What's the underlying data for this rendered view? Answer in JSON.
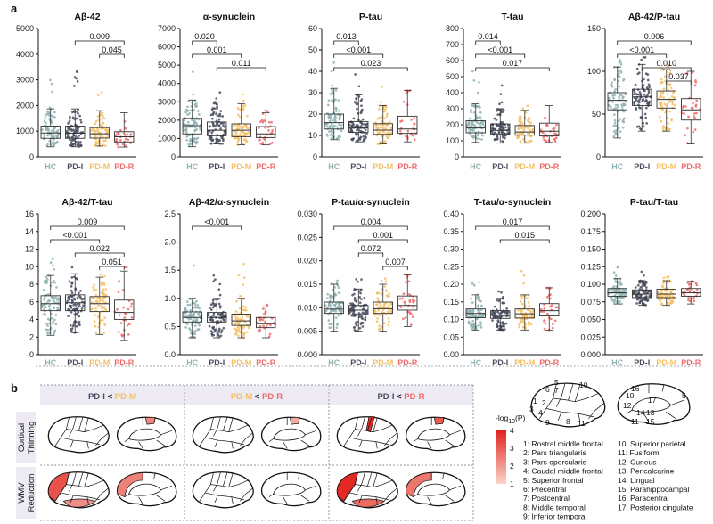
{
  "panel_labels": {
    "a": "a",
    "b": "b"
  },
  "colors": {
    "HC": "#8fb3b3",
    "PD-I": "#4a4e60",
    "PD-M": "#f5c064",
    "PD-R": "#ee6b6b"
  },
  "chart_data": [
    {
      "type": "box",
      "title": "Aβ-42",
      "categories": [
        "HC",
        "PD-I",
        "PD-M",
        "PD-R"
      ],
      "ylim": [
        0,
        5000
      ],
      "yticks": [
        0,
        1000,
        2000,
        3000,
        4000,
        5000
      ],
      "boxes": [
        [
          390,
          720,
          930,
          1200,
          1870
        ],
        [
          390,
          720,
          920,
          1200,
          1870
        ],
        [
          420,
          730,
          900,
          1140,
          1800
        ],
        [
          380,
          580,
          780,
          980,
          1720
        ]
      ],
      "outlier_max": [
        3300,
        3700,
        2600,
        1700
      ],
      "comparisons": [
        {
          "g1": "PD-I",
          "g2": "PD-R",
          "p": "0.009"
        },
        {
          "g1": "PD-M",
          "g2": "PD-R",
          "p": "0.045"
        }
      ]
    },
    {
      "type": "box",
      "title": "α-synuclein",
      "categories": [
        "HC",
        "PD-I",
        "PD-M",
        "PD-R"
      ],
      "ylim": [
        0,
        7000
      ],
      "yticks": [
        0,
        1000,
        2000,
        3000,
        4000,
        5000,
        6000,
        7000
      ],
      "boxes": [
        [
          550,
          1250,
          1700,
          2100,
          3100
        ],
        [
          700,
          1150,
          1450,
          1900,
          3000
        ],
        [
          650,
          1100,
          1450,
          1800,
          2900
        ],
        [
          650,
          1050,
          1250,
          1650,
          2400
        ]
      ],
      "outlier_max": [
        4700,
        3700,
        3800,
        2600
      ],
      "comparisons": [
        {
          "g1": "HC",
          "g2": "PD-I",
          "p": "0.020"
        },
        {
          "g1": "HC",
          "g2": "PD-M",
          "p": "0.001"
        },
        {
          "g1": "PD-I",
          "g2": "PD-R",
          "p": "0.011"
        }
      ]
    },
    {
      "type": "box",
      "title": "P-tau",
      "categories": [
        "HC",
        "PD-I",
        "PD-M",
        "PD-R"
      ],
      "ylim": [
        0,
        60
      ],
      "yticks": [
        0,
        10,
        20,
        30,
        40,
        50,
        60
      ],
      "boxes": [
        [
          8,
          13,
          16,
          20,
          32
        ],
        [
          7,
          11.5,
          13.5,
          16.5,
          29
        ],
        [
          6,
          10.5,
          12.5,
          15.5,
          24
        ],
        [
          7,
          11,
          13,
          19,
          31
        ]
      ],
      "outlier_max": [
        45,
        47,
        39,
        31
      ],
      "comparisons": [
        {
          "g1": "HC",
          "g2": "PD-I",
          "p": "0.013"
        },
        {
          "g1": "HC",
          "g2": "PD-M",
          "p": "<0.001"
        },
        {
          "g1": "HC",
          "g2": "PD-R",
          "p": "0.023"
        }
      ]
    },
    {
      "type": "box",
      "title": "T-tau",
      "categories": [
        "HC",
        "PD-I",
        "PD-M",
        "PD-R"
      ],
      "ylim": [
        0,
        800
      ],
      "yticks": [
        0,
        100,
        200,
        300,
        400,
        500,
        600,
        700,
        800
      ],
      "boxes": [
        [
          90,
          150,
          180,
          225,
          330
        ],
        [
          85,
          140,
          165,
          205,
          300
        ],
        [
          85,
          135,
          155,
          195,
          290
        ],
        [
          90,
          130,
          160,
          210,
          320
        ]
      ],
      "outlier_max": [
        600,
        470,
        350,
        320
      ],
      "comparisons": [
        {
          "g1": "HC",
          "g2": "PD-I",
          "p": "0.014"
        },
        {
          "g1": "HC",
          "g2": "PD-M",
          "p": "<0.001"
        },
        {
          "g1": "HC",
          "g2": "PD-R",
          "p": "0.017"
        }
      ]
    },
    {
      "type": "box",
      "title": "Aβ-42/P-tau",
      "categories": [
        "HC",
        "PD-I",
        "PD-M",
        "PD-R"
      ],
      "ylim": [
        0,
        150
      ],
      "yticks": [
        0,
        50,
        100,
        150
      ],
      "boxes": [
        [
          22,
          55,
          66,
          75,
          105
        ],
        [
          30,
          60,
          70,
          79,
          108
        ],
        [
          30,
          57,
          67,
          77,
          102
        ],
        [
          15,
          43,
          55,
          68,
          100
        ]
      ],
      "outlier_max": [
        115,
        118,
        113,
        100
      ],
      "comparisons": [
        {
          "g1": "HC",
          "g2": "PD-R",
          "p": "0.006"
        },
        {
          "g1": "HC",
          "g2": "PD-M",
          "p": "<0.001"
        },
        {
          "g1": "PD-I",
          "g2": "PD-R",
          "p": "0.010"
        },
        {
          "g1": "PD-M",
          "g2": "PD-R",
          "p": "0.037"
        }
      ]
    },
    {
      "type": "box",
      "title": "Aβ-42/T-tau",
      "categories": [
        "HC",
        "PD-I",
        "PD-M",
        "PD-R"
      ],
      "ylim": [
        0,
        16
      ],
      "yticks": [
        0,
        2,
        4,
        6,
        8,
        10,
        12,
        14,
        16
      ],
      "boxes": [
        [
          2.2,
          5,
          5.8,
          6.7,
          9
        ],
        [
          2.5,
          5,
          5.9,
          6.8,
          9.2
        ],
        [
          2.3,
          4.9,
          5.8,
          6.6,
          8.8
        ],
        [
          1.6,
          4,
          4.8,
          6.2,
          9.5
        ]
      ],
      "outlier_max": [
        11,
        10.5,
        9.5,
        10
      ],
      "comparisons": [
        {
          "g1": "HC",
          "g2": "PD-R",
          "p": "0.009"
        },
        {
          "g1": "HC",
          "g2": "PD-M",
          "p": "<0.001"
        },
        {
          "g1": "PD-I",
          "g2": "PD-R",
          "p": "0.022"
        },
        {
          "g1": "PD-M",
          "g2": "PD-R",
          "p": "0.051"
        }
      ]
    },
    {
      "type": "box",
      "title": "Aβ-42/α-synuclein",
      "categories": [
        "HC",
        "PD-I",
        "PD-M",
        "PD-R"
      ],
      "ylim": [
        0,
        2.5
      ],
      "yticks": [
        "0.0",
        "0.5",
        "1.0",
        "1.5",
        "2.0",
        "2.5"
      ],
      "boxes": [
        [
          0.3,
          0.58,
          0.66,
          0.76,
          1.0
        ],
        [
          0.3,
          0.58,
          0.66,
          0.75,
          1.0
        ],
        [
          0.3,
          0.52,
          0.6,
          0.72,
          1.0
        ],
        [
          0.3,
          0.48,
          0.55,
          0.66,
          0.85
        ]
      ],
      "outlier_max": [
        1.65,
        1.5,
        1.8,
        0.9
      ],
      "comparisons": [
        {
          "g1": "HC",
          "g2": "PD-M",
          "p": "<0.001"
        }
      ]
    },
    {
      "type": "box",
      "title": "P-tau/α-synuclein",
      "categories": [
        "HC",
        "PD-I",
        "PD-M",
        "PD-R"
      ],
      "ylim": [
        0,
        0.03
      ],
      "yticks": [
        "0.000",
        "0.005",
        "0.010",
        "0.015",
        "0.020",
        "0.025",
        "0.030"
      ],
      "boxes": [
        [
          0.005,
          0.0088,
          0.0097,
          0.0112,
          0.015
        ],
        [
          0.005,
          0.0085,
          0.0095,
          0.0105,
          0.014
        ],
        [
          0.005,
          0.0088,
          0.0098,
          0.0112,
          0.015
        ],
        [
          0.006,
          0.0095,
          0.0105,
          0.0125,
          0.017
        ]
      ],
      "outlier_max": [
        0.016,
        0.0175,
        0.0165,
        0.017
      ],
      "comparisons": [
        {
          "g1": "HC",
          "g2": "PD-R",
          "p": "0.004"
        },
        {
          "g1": "PD-I",
          "g2": "PD-R",
          "p": "0.001"
        },
        {
          "g1": "PD-I",
          "g2": "PD-M",
          "p": "0.072"
        },
        {
          "g1": "PD-M",
          "g2": "PD-R",
          "p": "0.007"
        }
      ]
    },
    {
      "type": "box",
      "title": "T-tau/α-synuclein",
      "categories": [
        "HC",
        "PD-I",
        "PD-M",
        "PD-R"
      ],
      "ylim": [
        0,
        0.4
      ],
      "yticks": [
        "0.00",
        "0.05",
        "0.10",
        "0.15",
        "0.20",
        "0.25",
        "0.30",
        "0.35",
        "0.40"
      ],
      "boxes": [
        [
          0.07,
          0.105,
          0.117,
          0.13,
          0.17
        ],
        [
          0.07,
          0.103,
          0.112,
          0.125,
          0.16
        ],
        [
          0.07,
          0.104,
          0.116,
          0.13,
          0.17
        ],
        [
          0.07,
          0.11,
          0.125,
          0.145,
          0.19
        ]
      ],
      "outlier_max": [
        0.22,
        0.2,
        0.24,
        0.19
      ],
      "comparisons": [
        {
          "g1": "HC",
          "g2": "PD-R",
          "p": "0.017"
        },
        {
          "g1": "PD-I",
          "g2": "PD-R",
          "p": "0.015"
        }
      ]
    },
    {
      "type": "box",
      "title": "P-tau/T-tau",
      "categories": [
        "HC",
        "PD-I",
        "PD-M",
        "PD-R"
      ],
      "ylim": [
        0,
        0.2
      ],
      "yticks": [
        "0.000",
        "0.025",
        "0.050",
        "0.075",
        "0.100",
        "0.125",
        "0.150",
        "0.175",
        "0.200"
      ],
      "boxes": [
        [
          0.072,
          0.083,
          0.088,
          0.094,
          0.108
        ],
        [
          0.07,
          0.081,
          0.086,
          0.092,
          0.105
        ],
        [
          0.07,
          0.081,
          0.086,
          0.093,
          0.105
        ],
        [
          0.072,
          0.083,
          0.088,
          0.094,
          0.104
        ]
      ],
      "outlier_max": [
        0.125,
        0.132,
        0.112,
        0.104
      ],
      "comparisons": []
    }
  ],
  "brain": {
    "columns": [
      {
        "left": "PD-I",
        "op": " < ",
        "right": "PD-M"
      },
      {
        "left": "PD-M",
        "op": " < ",
        "right": "PD-R"
      },
      {
        "left": "PD-I",
        "op": " < ",
        "right": "PD-R"
      }
    ],
    "rows": [
      [
        "Cortical",
        "Thinning"
      ],
      [
        "WMV",
        "Reduction"
      ]
    ],
    "colorbar": {
      "label_pre": "-log",
      "label_sub": "10",
      "label_post": "(P)",
      "ticks": [
        "4",
        "3",
        "2",
        "1"
      ],
      "max": 4,
      "min": 1
    },
    "region_numbers_lateral": [
      "5",
      "6",
      "7",
      "10",
      "1",
      "2",
      "3",
      "4",
      "8",
      "9",
      "11"
    ],
    "region_numbers_medial": [
      "10",
      "16",
      "5",
      "17",
      "12",
      "14",
      "13",
      "11",
      "15"
    ],
    "legend": [
      "1: Rostral middle frontal",
      "2: Pars triangularis",
      "3: Pars opercularis",
      "4: Caudal middle frontal",
      "5: Superior frontal",
      "6: Precentral",
      "7: Postcentral",
      "8: Middle temporal",
      "9: Inferior temporal",
      "10: Superior parietal",
      "11: Fusiform",
      "12: Cuneus",
      "13: Pericalcarine",
      "14: Lingual",
      "15: Parahippocampal",
      "16: Paracentral",
      "17: Posterior cingulate"
    ],
    "highlights": [
      {
        "row": 0,
        "col": 0,
        "view": "medial",
        "region": "paracentral",
        "value": 2.3
      },
      {
        "row": 0,
        "col": 1,
        "view": "medial",
        "region": "paracentral",
        "value": 1.7
      },
      {
        "row": 0,
        "col": 2,
        "view": "lateral",
        "region": "precentral",
        "value": 3.8
      },
      {
        "row": 0,
        "col": 2,
        "view": "medial",
        "region": "paracentral",
        "value": 3.0
      },
      {
        "row": 1,
        "col": 0,
        "view": "lateral",
        "region": "frontal",
        "value": 3.2
      },
      {
        "row": 1,
        "col": 0,
        "view": "lateral",
        "region": "temporal",
        "value": 2.2
      },
      {
        "row": 1,
        "col": 0,
        "view": "medial",
        "region": "frontal",
        "value": 2.4
      },
      {
        "row": 1,
        "col": 2,
        "view": "lateral",
        "region": "frontal",
        "value": 3.9
      },
      {
        "row": 1,
        "col": 2,
        "view": "lateral",
        "region": "temporal",
        "value": 2.8
      },
      {
        "row": 1,
        "col": 2,
        "view": "medial",
        "region": "frontal",
        "value": 2.6
      }
    ]
  }
}
